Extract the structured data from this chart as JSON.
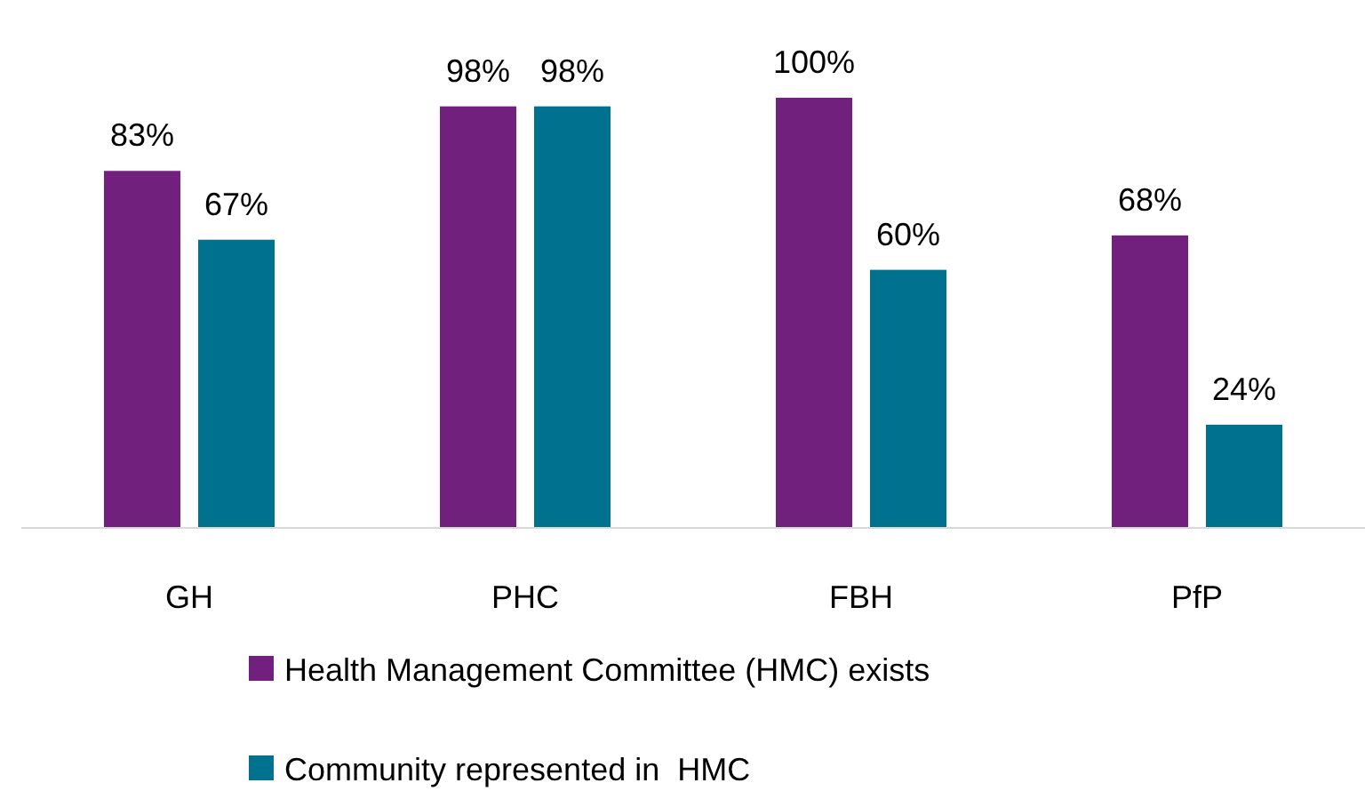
{
  "chart_data": {
    "type": "bar",
    "categories": [
      "GH",
      "PHC",
      "FBH",
      "PfP"
    ],
    "series": [
      {
        "name": "Health Management Committee (HMC) exists",
        "color": "#71207e",
        "values": [
          83,
          98,
          100,
          68
        ],
        "value_labels": [
          "83%",
          "98%",
          "100%",
          "68%"
        ]
      },
      {
        "name": "Community represented in  HMC",
        "color": "#00728f",
        "values": [
          67,
          98,
          60,
          24
        ],
        "value_labels": [
          "67%",
          "98%",
          "60%",
          "24%"
        ]
      }
    ],
    "legend": "bottom"
  }
}
